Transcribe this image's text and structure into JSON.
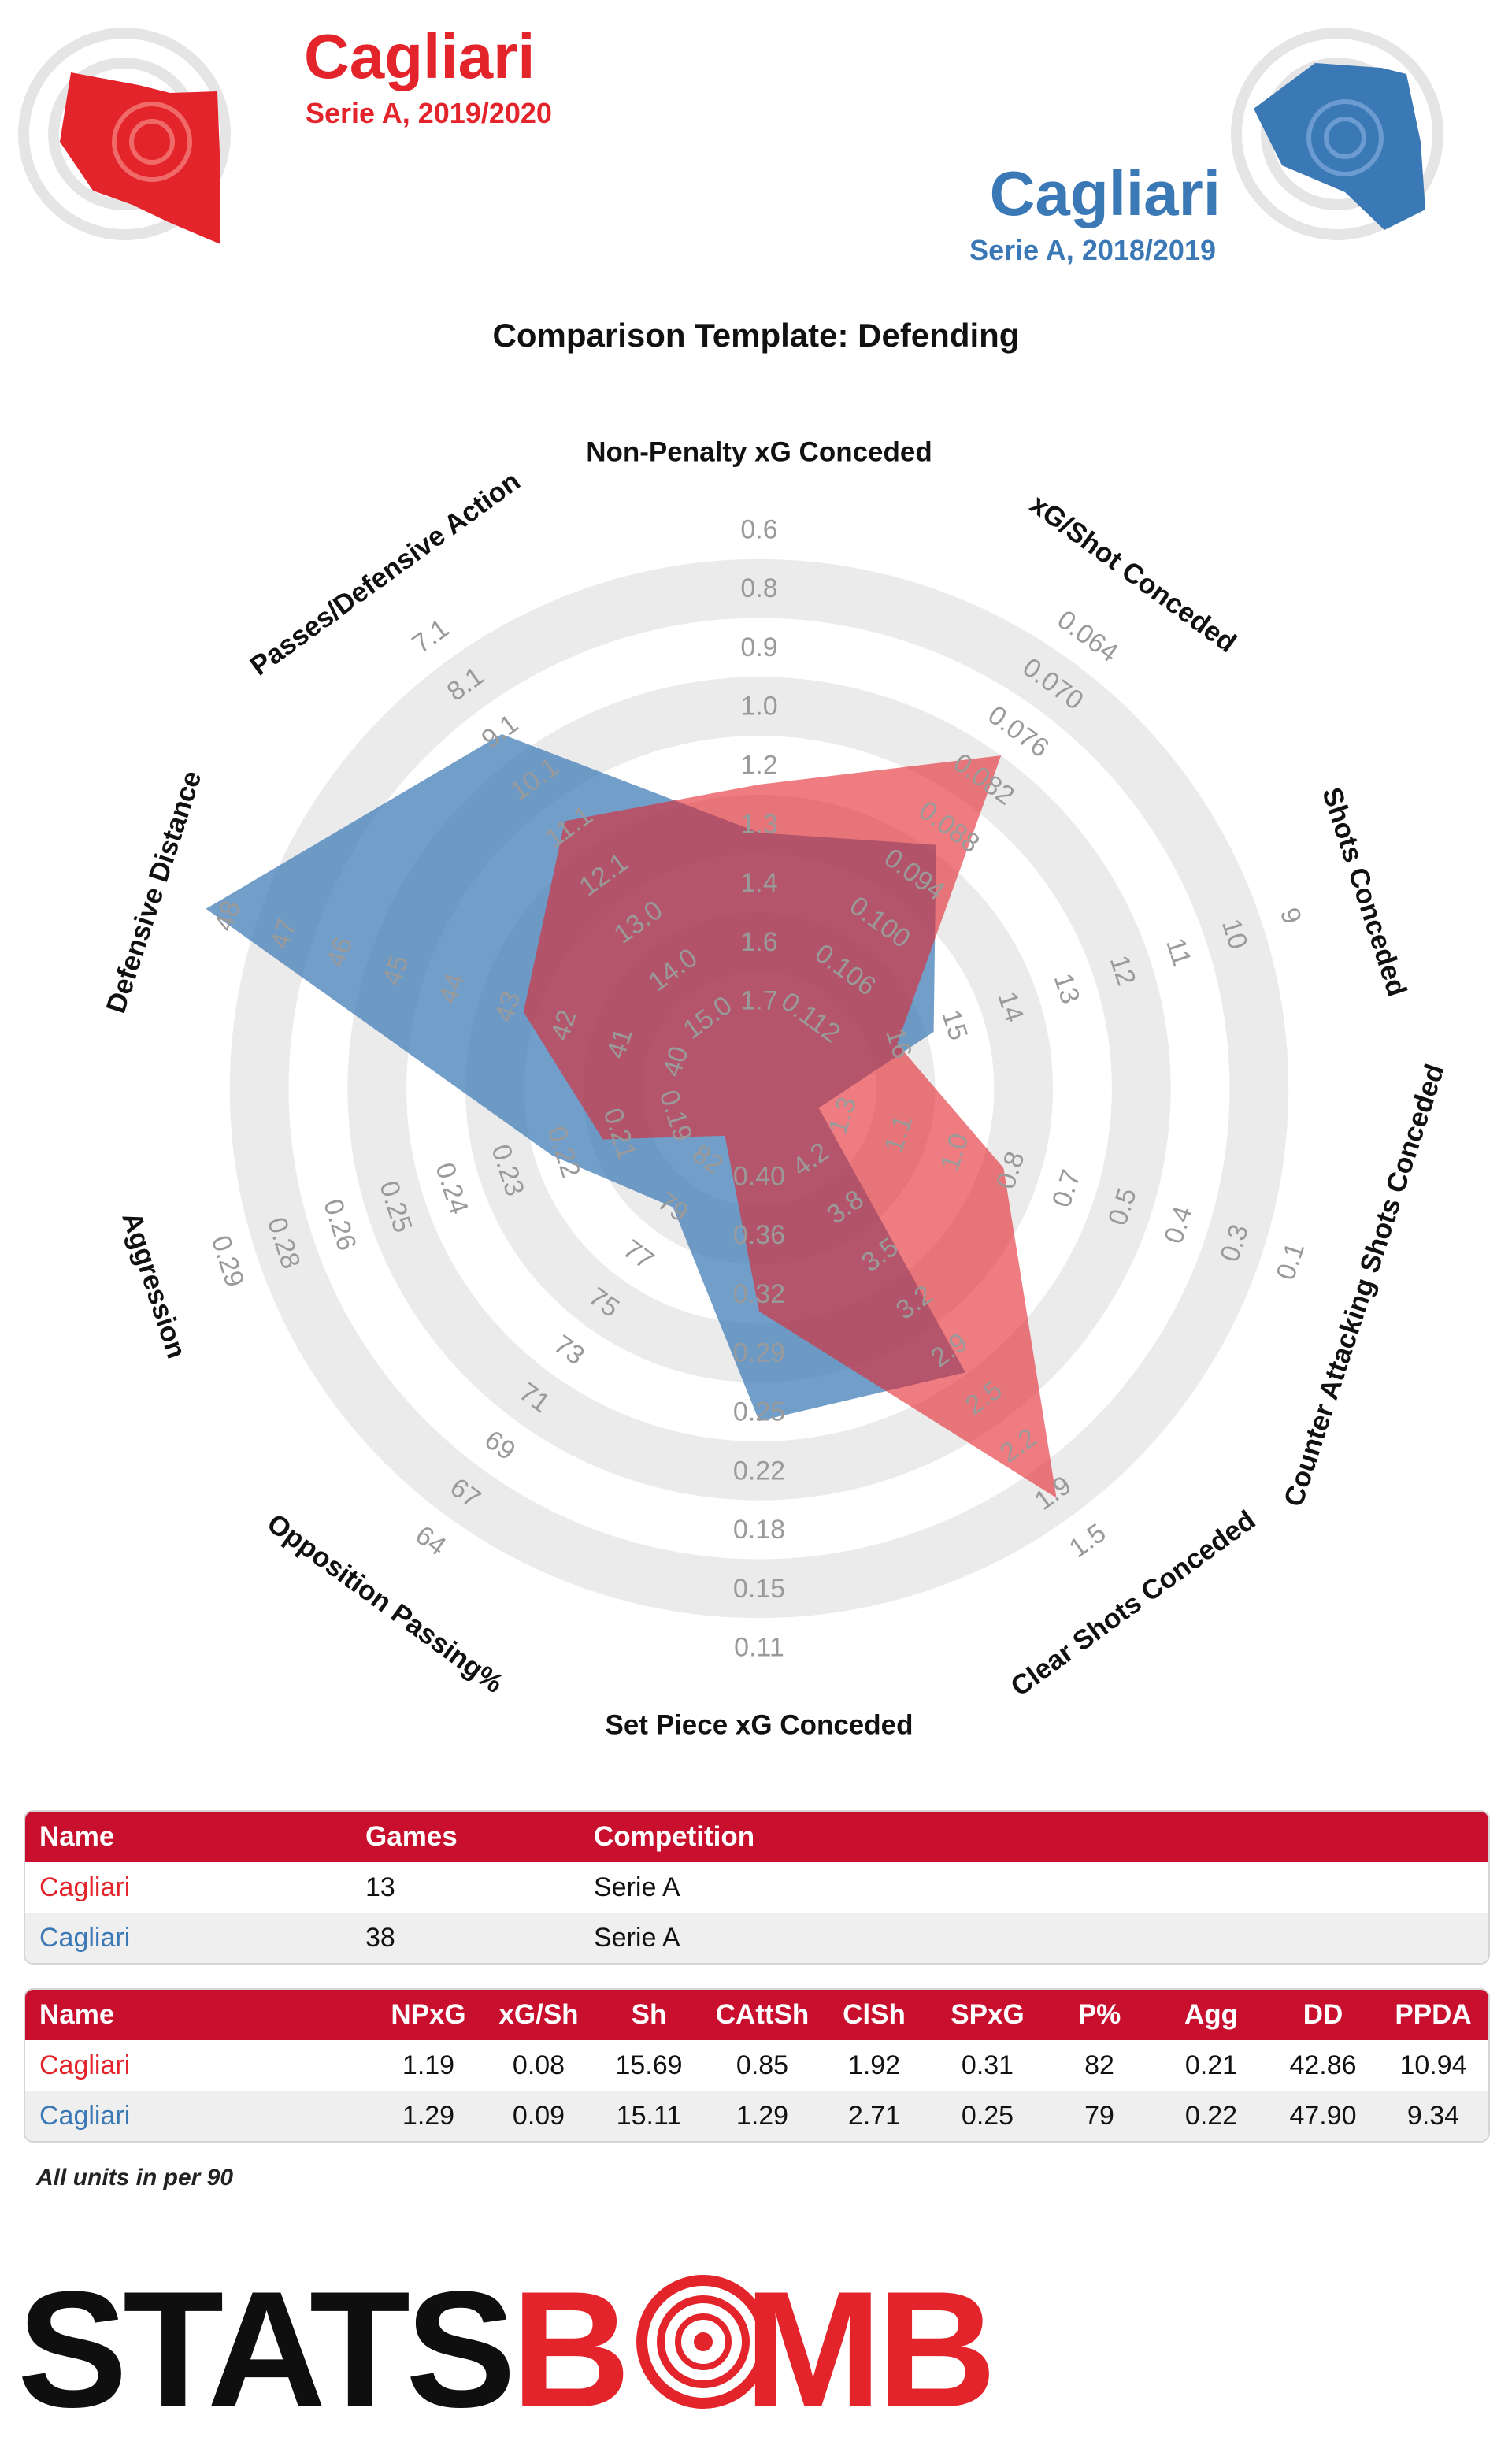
{
  "team1": {
    "name": "Cagliari",
    "subtitle": "Serie A, 2019/2020",
    "color": "#e3242b"
  },
  "team2": {
    "name": "Cagliari",
    "subtitle": "Serie A, 2018/2019",
    "color": "#3b78b6"
  },
  "chart_data": {
    "type": "radar",
    "title": "Comparison Template: Defending",
    "axes": [
      {
        "label": "Non-Penalty xG Conceded",
        "ticks": [
          "1.7",
          "1.6",
          "1.4",
          "1.3",
          "1.2",
          "1.0",
          "0.9",
          "0.8",
          "0.6"
        ],
        "range": [
          1.7,
          0.6
        ]
      },
      {
        "label": "xG/Shot Conceded",
        "ticks": [
          "0.112",
          "0.106",
          "0.100",
          "0.094",
          "0.088",
          "0.082",
          "0.076",
          "0.070",
          "0.064"
        ],
        "range": [
          0.112,
          0.064
        ]
      },
      {
        "label": "Shots Conceded",
        "ticks": [
          "16",
          "15",
          "14",
          "13",
          "12",
          "11",
          "10",
          "9"
        ],
        "range": [
          17,
          9
        ]
      },
      {
        "label": "Counter Attacking Shots Conceded",
        "ticks": [
          "1.3",
          "1.1",
          "1.0",
          "0.8",
          "0.7",
          "0.5",
          "0.4",
          "0.3",
          "0.1"
        ],
        "range": [
          1.3,
          0.1
        ]
      },
      {
        "label": "Clear Shots Conceded",
        "ticks": [
          "4.2",
          "3.8",
          "3.5",
          "3.2",
          "2.9",
          "2.5",
          "2.2",
          "1.9",
          "1.5"
        ],
        "range": [
          4.2,
          1.5
        ]
      },
      {
        "label": "Set Piece xG Conceded",
        "ticks": [
          "0.40",
          "0.36",
          "0.32",
          "0.29",
          "0.25",
          "0.22",
          "0.18",
          "0.15",
          "0.11"
        ],
        "range": [
          0.4,
          0.11
        ]
      },
      {
        "label": "Opposition Passing%",
        "ticks": [
          "82",
          "79",
          "77",
          "75",
          "73",
          "71",
          "69",
          "67",
          "64"
        ],
        "range": [
          82,
          64
        ]
      },
      {
        "label": "Aggression",
        "ticks": [
          "0.19",
          "0.21",
          "0.22",
          "0.23",
          "0.24",
          "0.25",
          "0.26",
          "0.28",
          "0.29"
        ],
        "range": [
          0.19,
          0.29
        ]
      },
      {
        "label": "Defensive Distance",
        "ticks": [
          "40",
          "41",
          "42",
          "43",
          "44",
          "45",
          "46",
          "47",
          "48"
        ],
        "range": [
          40,
          48
        ]
      },
      {
        "label": "Passes/Defensive Action",
        "ticks": [
          "15.0",
          "14.0",
          "13.0",
          "12.1",
          "11.1",
          "10.1",
          "9.1",
          "8.1",
          "7.1"
        ],
        "range": [
          15.0,
          7.1
        ]
      }
    ],
    "series": [
      {
        "name": "Cagliari Serie A, 2019/2020",
        "color": "#e3242b",
        "values": [
          1.19,
          0.08,
          15.69,
          0.85,
          1.92,
          0.31,
          82,
          0.21,
          42.86,
          10.94
        ]
      },
      {
        "name": "Cagliari Serie A, 2018/2019",
        "color": "#3b78b6",
        "values": [
          1.29,
          0.09,
          15.11,
          1.29,
          2.71,
          0.25,
          79,
          0.22,
          47.9,
          9.34
        ]
      }
    ]
  },
  "info_table": {
    "headers": [
      "Name",
      "Games",
      "Competition"
    ],
    "rows": [
      {
        "name": "Cagliari",
        "games": "13",
        "competition": "Serie A"
      },
      {
        "name": "Cagliari",
        "games": "38",
        "competition": "Serie A"
      }
    ]
  },
  "stats_table": {
    "headers": [
      "Name",
      "NPxG",
      "xG/Sh",
      "Sh",
      "CAttSh",
      "ClSh",
      "SPxG",
      "P%",
      "Agg",
      "DD",
      "PPDA"
    ],
    "rows": [
      {
        "name": "Cagliari",
        "values": [
          "1.19",
          "0.08",
          "15.69",
          "0.85",
          "1.92",
          "0.31",
          "82",
          "0.21",
          "42.86",
          "10.94"
        ]
      },
      {
        "name": "Cagliari",
        "values": [
          "1.29",
          "0.09",
          "15.11",
          "1.29",
          "2.71",
          "0.25",
          "79",
          "0.22",
          "47.90",
          "9.34"
        ]
      }
    ]
  },
  "footnote": "All units in per 90",
  "logo": {
    "part1": "STATS",
    "part2": "B",
    "part3": "MB"
  }
}
